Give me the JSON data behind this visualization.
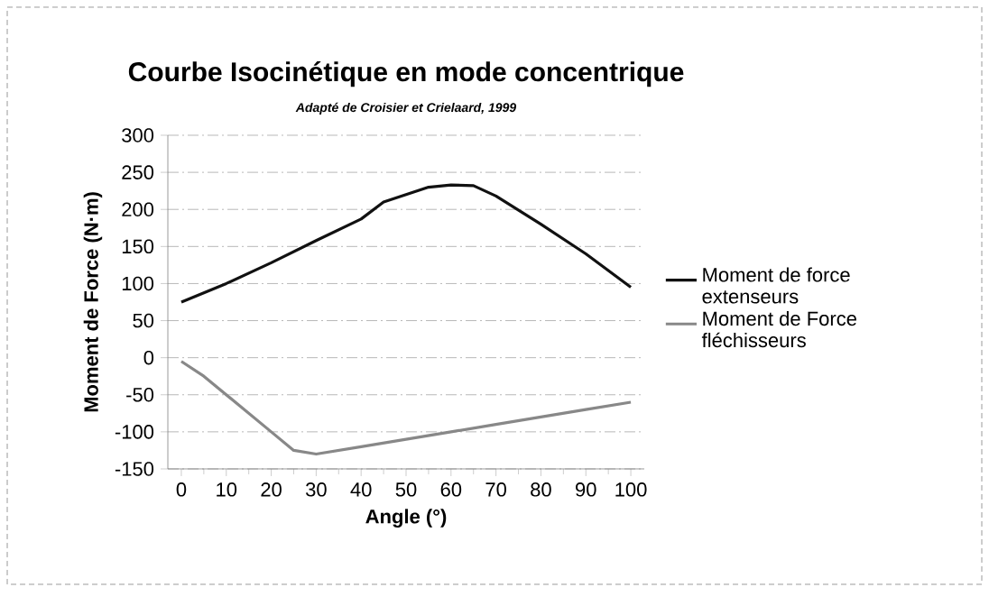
{
  "chart_data": {
    "type": "line",
    "title": "Courbe Isocinétique en mode concentrique",
    "subtitle": "Adapté de Croisier et Crielaard, 1999",
    "xlabel": "Angle (°)",
    "ylabel": "Moment de Force (N·m)",
    "xlim": [
      -3,
      103
    ],
    "xticks": [
      0,
      10,
      20,
      30,
      40,
      50,
      60,
      70,
      80,
      90,
      100
    ],
    "ylim": [
      -150,
      300
    ],
    "yticks": [
      -150,
      -100,
      -50,
      0,
      50,
      100,
      150,
      200,
      250,
      300
    ],
    "grid": "y",
    "legend": "right",
    "marker": "none",
    "line_style": "solid",
    "series": [
      {
        "name": "Moment de force extenseurs",
        "color": "#111111",
        "x": [
          0,
          10,
          20,
          30,
          40,
          45,
          50,
          55,
          60,
          65,
          70,
          80,
          90,
          100
        ],
        "values": [
          75,
          100,
          128,
          158,
          187,
          210,
          220,
          230,
          233,
          232,
          218,
          180,
          140,
          95
        ]
      },
      {
        "name": "Moment de Force fléchisseurs",
        "color": "#888888",
        "x": [
          0,
          5,
          10,
          20,
          25,
          30,
          40,
          50,
          60,
          70,
          80,
          90,
          100
        ],
        "values": [
          -5,
          -25,
          -50,
          -100,
          -125,
          -130,
          -120,
          -110,
          -100,
          -90,
          -80,
          -70,
          -60
        ]
      }
    ]
  }
}
